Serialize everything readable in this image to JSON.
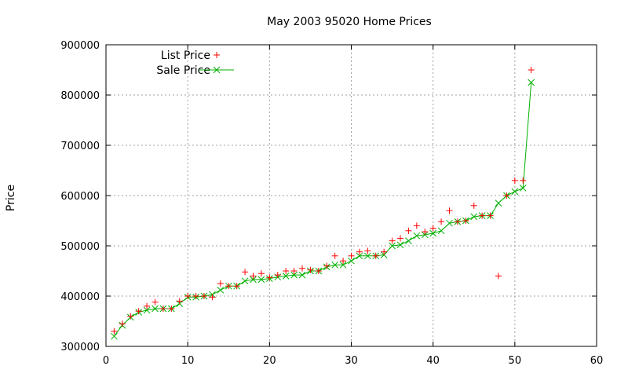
{
  "chart_data": {
    "type": "scatter",
    "title": "May 2003 95020 Home Prices",
    "xlabel": "",
    "ylabel": "Price",
    "xlim": [
      0,
      60
    ],
    "ylim": [
      300000,
      900000
    ],
    "xticks": [
      "0",
      "10",
      "20",
      "30",
      "40",
      "50",
      "60"
    ],
    "yticks": [
      "300000",
      "400000",
      "500000",
      "600000",
      "700000",
      "800000",
      "900000"
    ],
    "grid": true,
    "legend_position": "top-left",
    "series": [
      {
        "name": "List Price",
        "style": "points",
        "marker": "plus",
        "color": "#ff0000",
        "x": [
          1,
          2,
          3,
          4,
          5,
          6,
          7,
          8,
          9,
          10,
          11,
          12,
          13,
          14,
          15,
          16,
          17,
          18,
          19,
          20,
          21,
          22,
          23,
          24,
          25,
          26,
          27,
          28,
          29,
          30,
          31,
          32,
          33,
          34,
          35,
          36,
          37,
          38,
          39,
          40,
          41,
          42,
          43,
          44,
          45,
          46,
          47,
          48,
          49,
          50,
          51,
          52
        ],
        "y": [
          330000,
          345000,
          360000,
          370000,
          380000,
          388000,
          375000,
          375000,
          390000,
          400000,
          400000,
          400000,
          398000,
          425000,
          420000,
          420000,
          448000,
          440000,
          445000,
          437000,
          442000,
          450000,
          450000,
          455000,
          452000,
          450000,
          460000,
          480000,
          470000,
          480000,
          488000,
          490000,
          480000,
          488000,
          510000,
          515000,
          530000,
          540000,
          528000,
          535000,
          548000,
          570000,
          548000,
          550000,
          580000,
          560000,
          560000,
          440000,
          600000,
          630000,
          630000,
          850000
        ]
      },
      {
        "name": "Sale Price",
        "style": "linespoints",
        "marker": "cross",
        "color": "#00b000",
        "x": [
          1,
          2,
          3,
          4,
          5,
          6,
          7,
          8,
          9,
          10,
          11,
          12,
          13,
          14,
          15,
          16,
          17,
          18,
          19,
          20,
          21,
          22,
          23,
          24,
          25,
          26,
          27,
          28,
          29,
          30,
          31,
          32,
          33,
          34,
          35,
          36,
          37,
          38,
          39,
          40,
          41,
          42,
          43,
          44,
          45,
          46,
          47,
          48,
          49,
          50,
          51,
          52
        ],
        "y": [
          320000,
          342000,
          358000,
          368000,
          372000,
          375000,
          375000,
          375000,
          385000,
          398000,
          398000,
          400000,
          403000,
          412000,
          420000,
          420000,
          430000,
          433000,
          433000,
          435000,
          438000,
          440000,
          442000,
          442000,
          450000,
          450000,
          458000,
          462000,
          462000,
          470000,
          480000,
          480000,
          480000,
          482000,
          500000,
          502000,
          510000,
          520000,
          522000,
          525000,
          530000,
          545000,
          548000,
          550000,
          558000,
          560000,
          560000,
          585000,
          600000,
          608000,
          615000,
          825000
        ]
      }
    ]
  }
}
